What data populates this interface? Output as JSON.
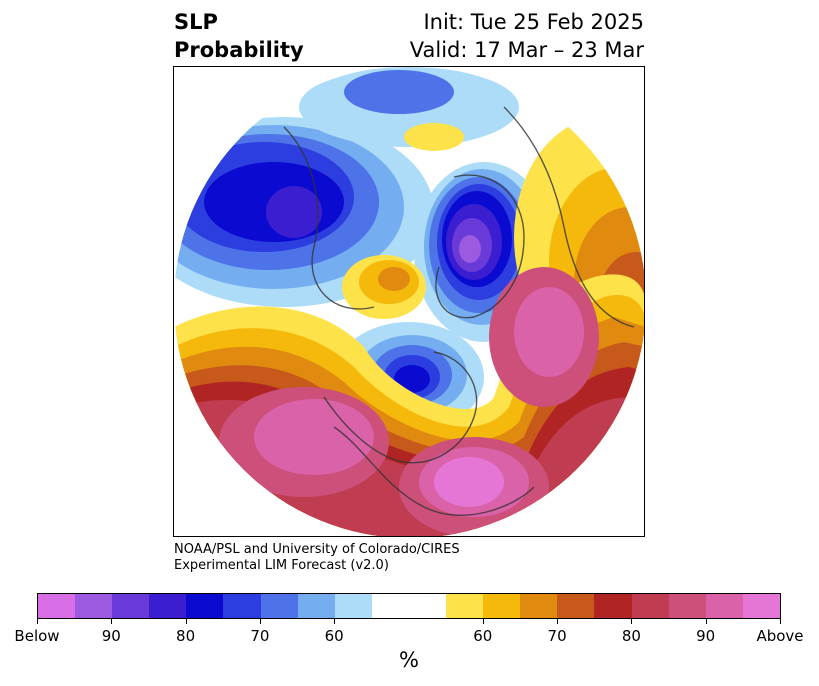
{
  "title": {
    "left_line1": "SLP",
    "left_line2": "Probability",
    "right_line1": "Init: Tue 25 Feb 2025",
    "right_line2": "Valid: 17 Mar – 23 Mar"
  },
  "credit": {
    "line1": "NOAA/PSL and University of Colorado/CIRES",
    "line2": "Experimental LIM Forecast (v2.0)"
  },
  "colorbar": {
    "colors": [
      "#d86ee6",
      "#9b5ae0",
      "#6a3ad8",
      "#3a1ed0",
      "#0a0ad0",
      "#2c3ee0",
      "#4e72e8",
      "#74aef0",
      "#acdcf8",
      "#ffffff",
      "#ffffff",
      "#fde24a",
      "#f5b90c",
      "#e08b10",
      "#c75a1a",
      "#b02424",
      "#c03c50",
      "#cc507a",
      "#da62a8",
      "#e676d6"
    ],
    "unit": "%",
    "tick_labels": [
      {
        "text": "Below",
        "frac": 0.0
      },
      {
        "text": "90",
        "frac": 0.1
      },
      {
        "text": "80",
        "frac": 0.2
      },
      {
        "text": "70",
        "frac": 0.3
      },
      {
        "text": "60",
        "frac": 0.4
      },
      {
        "text": "60",
        "frac": 0.6
      },
      {
        "text": "70",
        "frac": 0.7
      },
      {
        "text": "80",
        "frac": 0.8
      },
      {
        "text": "90",
        "frac": 0.9
      },
      {
        "text": "Above",
        "frac": 1.0
      }
    ]
  }
}
